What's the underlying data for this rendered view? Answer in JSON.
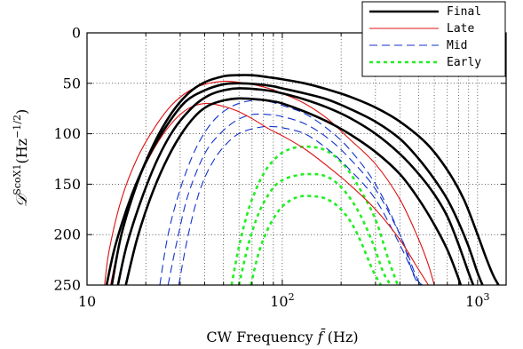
{
  "chart_data": {
    "type": "line",
    "xlabel": "CW Frequency f̄ (Hz)",
    "ylabel": "𝒟ScoX1(Hz−1/2)",
    "xscale": "log",
    "xlim": [
      10,
      1400
    ],
    "ylim": [
      250,
      0
    ],
    "y_inverted": true,
    "grid": true,
    "legend_position": "top-right",
    "x_ticks": [
      {
        "value": 10,
        "label": "10",
        "sup": ""
      },
      {
        "value": 100,
        "label": "10",
        "sup": "2"
      },
      {
        "value": 1000,
        "label": "10",
        "sup": "3"
      }
    ],
    "y_ticks": [
      0,
      50,
      100,
      150,
      200,
      250
    ],
    "legend": [
      {
        "name": "Final",
        "color": "#000000",
        "dash": "",
        "width": 2.6
      },
      {
        "name": "Late",
        "color": "#dd1111",
        "dash": "",
        "width": 1.1
      },
      {
        "name": "Mid",
        "color": "#1133cc",
        "dash": "9,5",
        "width": 1.1
      },
      {
        "name": "Early",
        "color": "#22ee22",
        "dash": "4,4",
        "width": 2.6
      }
    ],
    "series": [
      {
        "group": "Final",
        "x": [
          13.4,
          15,
          18,
          22,
          27,
          33,
          40,
          50,
          58,
          70,
          85,
          100,
          130,
          170,
          220,
          300,
          400,
          550,
          700,
          850,
          1000,
          1100,
          1200,
          1280
        ],
        "y": [
          250,
          200,
          150,
          110,
          80,
          60,
          49,
          43,
          42,
          42,
          44,
          46,
          50,
          56,
          63,
          74,
          88,
          110,
          136,
          165,
          200,
          222,
          240,
          250
        ]
      },
      {
        "group": "Final",
        "x": [
          12.6,
          14,
          17,
          21,
          26,
          32,
          40,
          50,
          60,
          75,
          90,
          100,
          130,
          170,
          220,
          300,
          400,
          500,
          600,
          700,
          800,
          900,
          1000,
          1060
        ],
        "y": [
          250,
          210,
          160,
          120,
          90,
          68,
          57,
          51,
          50,
          51,
          53,
          55,
          60,
          66,
          75,
          88,
          105,
          125,
          145,
          165,
          188,
          212,
          238,
          250
        ]
      },
      {
        "group": "Final",
        "x": [
          14.4,
          16,
          19,
          23,
          28,
          35,
          42,
          50,
          60,
          75,
          90,
          100,
          130,
          170,
          220,
          300,
          400,
          500,
          600,
          700,
          800,
          900,
          950
        ],
        "y": [
          250,
          210,
          165,
          125,
          95,
          73,
          62,
          57,
          55,
          56,
          58,
          60,
          66,
          74,
          84,
          100,
          120,
          140,
          160,
          182,
          210,
          238,
          250
        ]
      },
      {
        "group": "Final",
        "x": [
          15.8,
          18,
          21,
          25,
          30,
          36,
          42,
          50,
          60,
          75,
          90,
          100,
          130,
          170,
          220,
          300,
          400,
          500,
          600,
          700,
          780,
          820
        ],
        "y": [
          250,
          205,
          165,
          130,
          102,
          82,
          72,
          67,
          65,
          66,
          68,
          70,
          78,
          88,
          100,
          118,
          140,
          165,
          190,
          215,
          238,
          250
        ]
      },
      {
        "group": "Late",
        "x": [
          12.3,
          13,
          15,
          18,
          22,
          27,
          33,
          40,
          50,
          60,
          70,
          85,
          100,
          130,
          170,
          220,
          300,
          400,
          500,
          560,
          600
        ],
        "y": [
          250,
          215,
          165,
          125,
          95,
          72,
          58,
          51,
          48,
          49,
          51,
          55,
          60,
          70,
          85,
          105,
          130,
          165,
          205,
          230,
          250
        ]
      },
      {
        "group": "Late",
        "x": [
          13.2,
          15,
          18,
          22,
          27,
          33,
          40,
          48,
          58,
          70,
          85,
          100,
          130,
          170,
          220,
          300,
          400,
          500,
          560
        ],
        "y": [
          250,
          200,
          150,
          115,
          90,
          75,
          70,
          72,
          77,
          85,
          95,
          102,
          115,
          132,
          150,
          175,
          205,
          235,
          250
        ]
      },
      {
        "group": "Mid",
        "x": [
          23.6,
          26,
          30,
          36,
          44,
          55,
          70,
          85,
          100,
          130,
          170,
          220,
          300,
          400,
          470,
          510
        ],
        "y": [
          250,
          200,
          155,
          115,
          88,
          73,
          67,
          68,
          72,
          80,
          95,
          115,
          150,
          200,
          240,
          250
        ]
      },
      {
        "group": "Mid",
        "x": [
          26,
          29,
          33,
          40,
          48,
          58,
          70,
          85,
          100,
          130,
          170,
          220,
          300,
          400,
          470,
          510
        ],
        "y": [
          250,
          205,
          160,
          120,
          100,
          87,
          81,
          81,
          83,
          90,
          104,
          124,
          155,
          200,
          235,
          250
        ]
      },
      {
        "group": "Mid",
        "x": [
          29.5,
          33,
          38,
          45,
          55,
          65,
          80,
          90,
          100,
          130,
          170,
          220,
          300,
          400,
          480,
          520
        ],
        "y": [
          250,
          200,
          155,
          125,
          105,
          97,
          93,
          93,
          94,
          100,
          115,
          135,
          165,
          210,
          242,
          250
        ]
      },
      {
        "group": "Early",
        "x": [
          55,
          60,
          68,
          80,
          95,
          110,
          125,
          140,
          160,
          185,
          215,
          250,
          300,
          350,
          390
        ],
        "y": [
          250,
          212,
          172,
          140,
          122,
          115,
          113,
          113,
          115,
          122,
          135,
          155,
          185,
          225,
          250
        ]
      },
      {
        "group": "Early",
        "x": [
          60,
          67,
          76,
          88,
          100,
          120,
          140,
          160,
          185,
          215,
          250,
          290,
          330,
          360
        ],
        "y": [
          250,
          210,
          178,
          156,
          146,
          141,
          140,
          141,
          147,
          160,
          180,
          208,
          238,
          250
        ]
      },
      {
        "group": "Early",
        "x": [
          69,
          76,
          85,
          97,
          110,
          125,
          145,
          165,
          190,
          220,
          250,
          290,
          320
        ],
        "y": [
          250,
          217,
          193,
          175,
          166,
          162,
          162,
          164,
          171,
          185,
          205,
          235,
          250
        ]
      }
    ]
  }
}
